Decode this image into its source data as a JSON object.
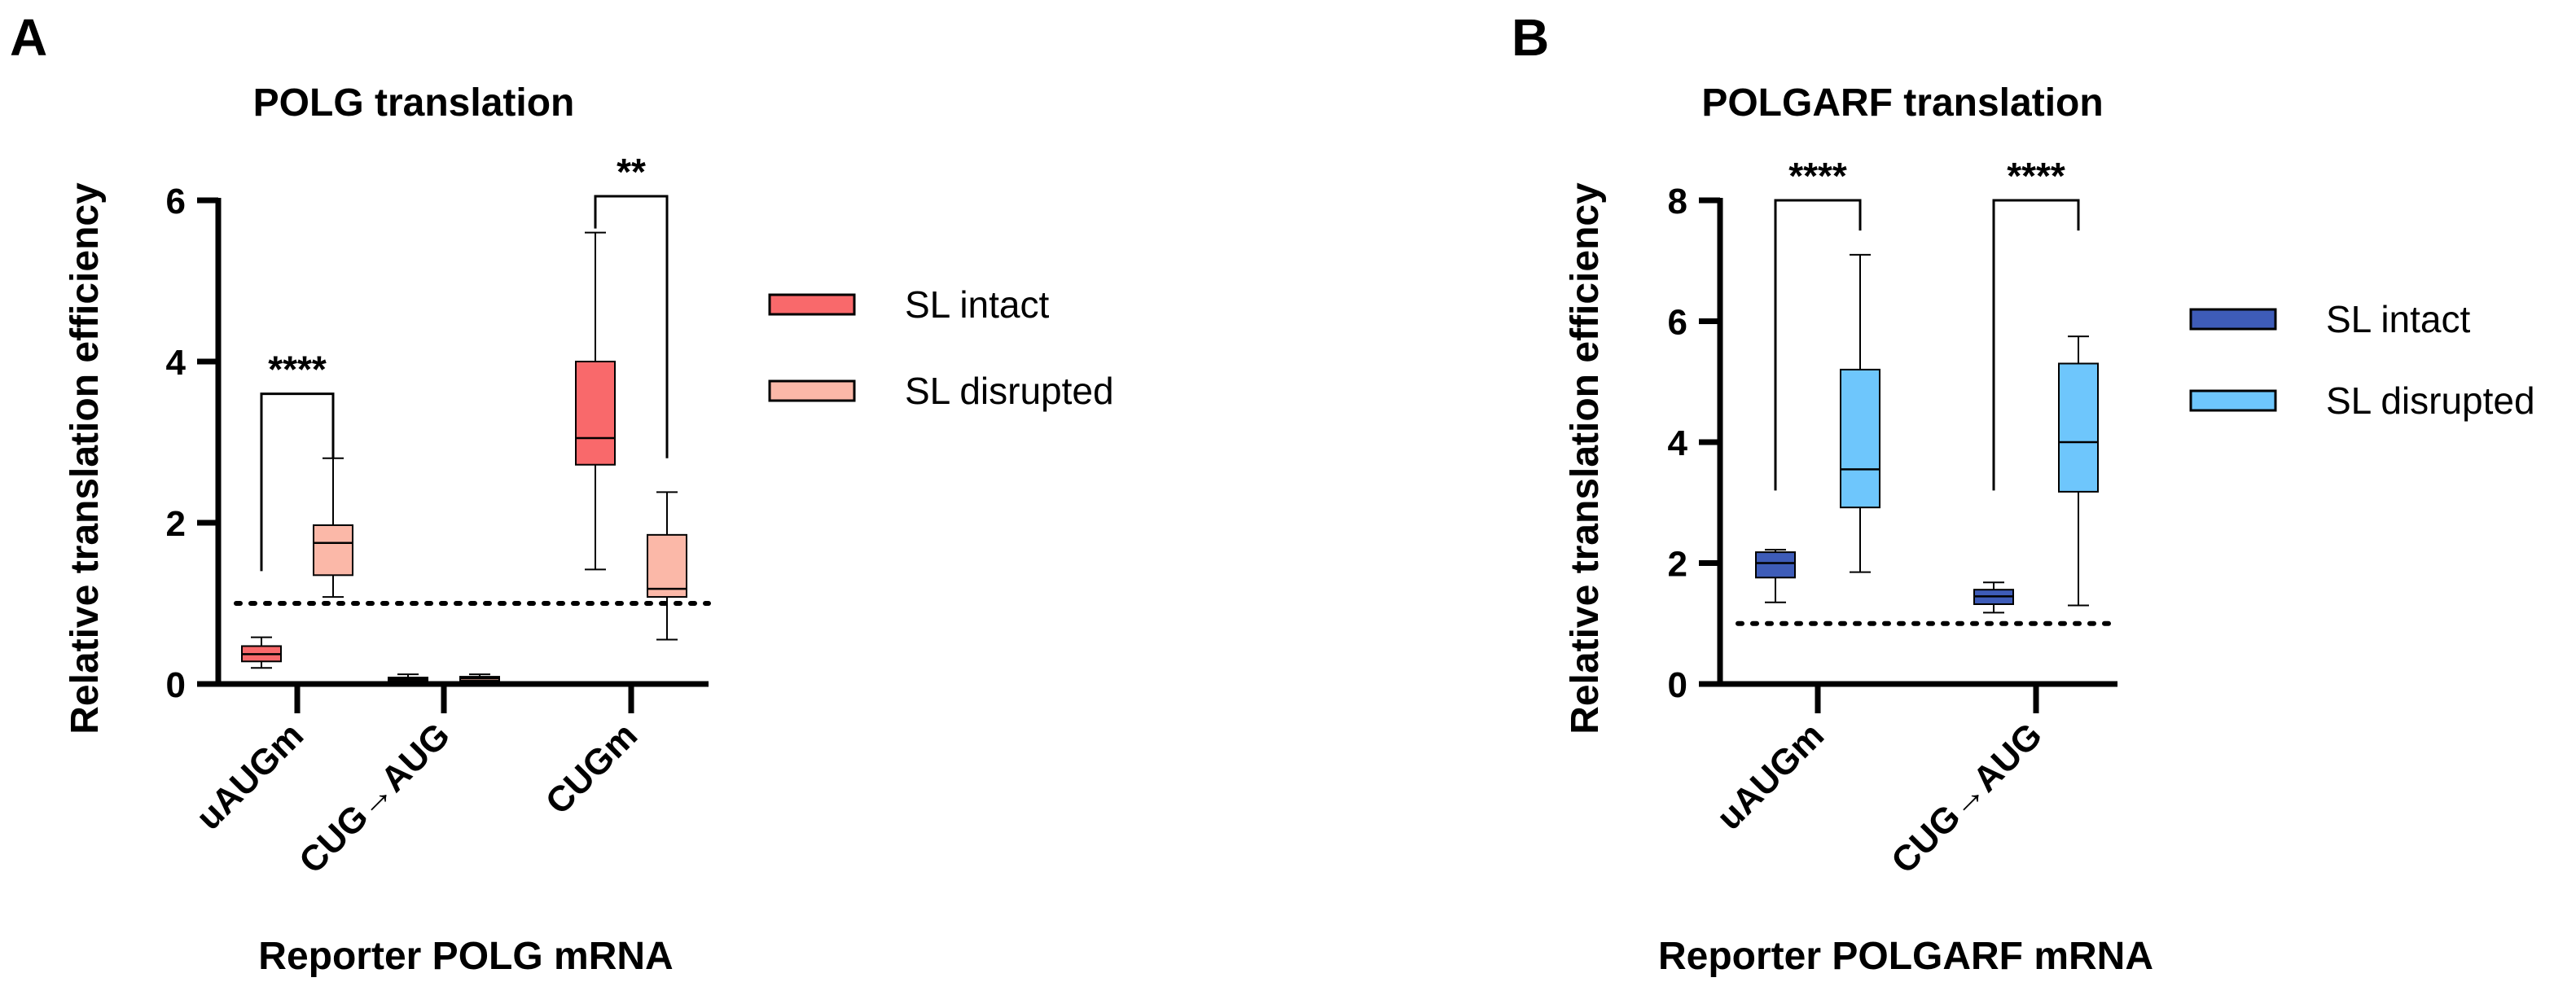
{
  "chart_data": [
    {
      "panel": "A",
      "type": "box",
      "title": "POLG translation",
      "xlabel": "Reporter POLG mRNA",
      "ylabel": "Relative translation efficiency",
      "ylim": [
        0,
        6
      ],
      "yticks": [
        0,
        2,
        4,
        6
      ],
      "yticks_text": [
        "0",
        "2",
        "4",
        "6"
      ],
      "reference_line": 1,
      "categories": [
        "uAUGm",
        "CUG→AUG",
        "CUGm"
      ],
      "legend": [
        "SL intact",
        "SL disrupted"
      ],
      "colors": {
        "fill": [
          "#f9696b",
          "#fbb8a8"
        ],
        "stroke": "#000000"
      },
      "series": [
        {
          "name": "SL intact",
          "boxes": [
            {
              "min": 0.2,
              "q1": 0.28,
              "median": 0.37,
              "q3": 0.47,
              "max": 0.58
            },
            {
              "min": 0.02,
              "q1": 0.04,
              "median": 0.06,
              "q3": 0.08,
              "max": 0.12
            },
            {
              "min": 1.42,
              "q1": 2.72,
              "median": 3.05,
              "q3": 4.0,
              "max": 5.6
            }
          ]
        },
        {
          "name": "SL disrupted",
          "boxes": [
            {
              "min": 1.08,
              "q1": 1.35,
              "median": 1.75,
              "q3": 1.97,
              "max": 2.8
            },
            {
              "min": 0.02,
              "q1": 0.04,
              "median": 0.07,
              "q3": 0.09,
              "max": 0.12
            },
            {
              "min": 0.55,
              "q1": 1.08,
              "median": 1.18,
              "q3": 1.85,
              "max": 2.38
            }
          ]
        }
      ],
      "significance": [
        {
          "category": 0,
          "label": "****",
          "left_y": 1.4,
          "right_y": 2.8,
          "top": 3.6
        },
        {
          "category": 2,
          "label": "**",
          "left_y": 5.65,
          "right_y": 2.8,
          "top": 6.05
        }
      ]
    },
    {
      "panel": "B",
      "type": "box",
      "title": "POLGARF translation",
      "xlabel": "Reporter POLGARF mRNA",
      "ylabel": "Relative translation efficiency",
      "ylim": [
        0,
        8
      ],
      "yticks": [
        0,
        2,
        4,
        6,
        8
      ],
      "yticks_text": [
        "0",
        "2",
        "4",
        "6",
        "8"
      ],
      "reference_line": 1,
      "categories": [
        "uAUGm",
        "CUG→AUG"
      ],
      "legend": [
        "SL intact",
        "SL disrupted"
      ],
      "colors": {
        "fill": [
          "#3e5cb8",
          "#6ec6fc"
        ],
        "stroke": "#000000"
      },
      "series": [
        {
          "name": "SL intact",
          "boxes": [
            {
              "min": 1.35,
              "q1": 1.76,
              "median": 2.0,
              "q3": 2.18,
              "max": 2.22
            },
            {
              "min": 1.18,
              "q1": 1.32,
              "median": 1.45,
              "q3": 1.56,
              "max": 1.68
            }
          ]
        },
        {
          "name": "SL disrupted",
          "boxes": [
            {
              "min": 1.85,
              "q1": 2.92,
              "median": 3.55,
              "q3": 5.2,
              "max": 7.1
            },
            {
              "min": 1.3,
              "q1": 3.18,
              "median": 4.0,
              "q3": 5.3,
              "max": 5.75
            }
          ]
        }
      ],
      "significance": [
        {
          "category": 0,
          "label": "****",
          "left_y": 3.2,
          "right_y": 7.5,
          "top": 8.0
        },
        {
          "category": 1,
          "label": "****",
          "left_y": 3.2,
          "right_y": 7.5,
          "top": 8.0
        }
      ]
    }
  ]
}
